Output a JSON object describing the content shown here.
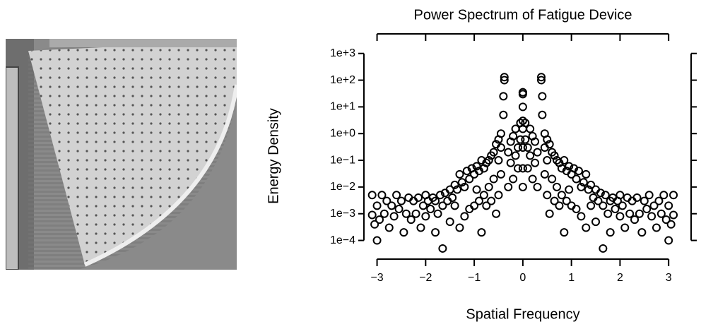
{
  "chart_data": {
    "type": "scatter",
    "title": "Power Spectrum of Fatigue Device",
    "x_label": "Spatial Frequency",
    "y_label": "Energy Density",
    "log_y": true,
    "color": "#000000",
    "xlim": [
      -3.27,
      3.23
    ],
    "ylim": [
      2e-05,
      1600
    ],
    "xticks": [
      {
        "value": -3,
        "label": "−3"
      },
      {
        "value": -2,
        "label": "−2"
      },
      {
        "value": -1,
        "label": "−1"
      },
      0,
      1,
      2,
      3
    ],
    "yticks": [
      {
        "value": 1000,
        "label": "1e+3"
      },
      {
        "value": 100,
        "label": "1e+2"
      },
      {
        "value": 10,
        "label": "1e+1"
      },
      {
        "value": 1,
        "label": "1e+0"
      },
      {
        "value": 0.1,
        "label": "1e−1"
      },
      {
        "value": 0.01,
        "label": "1e−2"
      },
      {
        "value": 0.001,
        "label": "1e−3"
      },
      {
        "value": 0.0001,
        "label": "1e−4"
      }
    ],
    "x": [
      -0.05,
      -0.05,
      -0.1,
      -0.1,
      -0.15,
      -0.15,
      -0.2,
      -0.2,
      -0.25,
      -0.25,
      -0.3,
      -0.3,
      -0.38,
      -0.38,
      -0.4,
      -0.4,
      -0.45,
      -0.45,
      -0.45,
      -0.5,
      -0.5,
      -0.5,
      -0.55,
      -0.55,
      -0.6,
      -0.6,
      -0.65,
      -0.65,
      -0.7,
      -0.7,
      -0.75,
      -0.75,
      -0.8,
      -0.8,
      -0.85,
      -0.85,
      -0.9,
      -0.9,
      -0.95,
      -0.95,
      -1.0,
      -1.0,
      -1.05,
      -1.1,
      -1.1,
      -1.15,
      -1.2,
      -1.2,
      -1.25,
      -1.3,
      -1.3,
      -1.35,
      -1.4,
      -1.4,
      -1.45,
      -1.5,
      -1.5,
      -1.55,
      -1.6,
      -1.65,
      -1.65,
      -1.7,
      -1.75,
      -1.8,
      -1.8,
      -1.85,
      -1.9,
      -1.95,
      -2.0,
      -2.0,
      -2.05,
      -2.1,
      -2.15,
      -2.2,
      -2.25,
      -2.3,
      -2.35,
      -2.4,
      -2.45,
      -2.5,
      -2.55,
      -2.6,
      -2.65,
      -2.7,
      -2.75,
      -2.8,
      -2.85,
      -2.9,
      -2.95,
      -3.0,
      -3.0,
      -3.05,
      -3.1,
      -3.1,
      0,
      0,
      0,
      0,
      0,
      0,
      0,
      0,
      0,
      0.05,
      0.05,
      0.1,
      0.1,
      0.15,
      0.15,
      0.2,
      0.2,
      0.25,
      0.25,
      0.3,
      0.3,
      0.38,
      0.38,
      0.4,
      0.4,
      0.45,
      0.45,
      0.45,
      0.5,
      0.5,
      0.5,
      0.55,
      0.55,
      0.6,
      0.6,
      0.65,
      0.65,
      0.7,
      0.7,
      0.75,
      0.75,
      0.8,
      0.8,
      0.85,
      0.85,
      0.9,
      0.9,
      0.95,
      0.95,
      1.0,
      1.0,
      1.05,
      1.1,
      1.1,
      1.15,
      1.2,
      1.2,
      1.25,
      1.3,
      1.3,
      1.35,
      1.4,
      1.4,
      1.45,
      1.5,
      1.5,
      1.55,
      1.6,
      1.65,
      1.65,
      1.7,
      1.75,
      1.8,
      1.8,
      1.85,
      1.9,
      1.95,
      2.0,
      2.0,
      2.05,
      2.1,
      2.15,
      2.2,
      2.25,
      2.3,
      2.35,
      2.4,
      2.45,
      2.5,
      2.55,
      2.6,
      2.65,
      2.7,
      2.75,
      2.8,
      2.85,
      2.9,
      2.95,
      3.0,
      3.0,
      3.05,
      3.1,
      3.1
    ],
    "values": [
      2.5,
      0.6,
      0.3,
      0.05,
      1.5,
      0.15,
      0.8,
      0.02,
      0.5,
      0.08,
      0.2,
      0.01,
      130,
      100,
      25,
      5,
      1,
      0.3,
      0.03,
      0.6,
      0.1,
      0.005,
      0.4,
      0.001,
      0.2,
      0.02,
      0.15,
      0.003,
      0.1,
      0.01,
      0.08,
      0.002,
      0.05,
      0.005,
      0.1,
      0.0002,
      0.04,
      0.003,
      0.06,
      0.008,
      0.03,
      0.002,
      0.05,
      0.02,
      0.0015,
      0.04,
      0.01,
      0.0008,
      0.015,
      0.03,
      0.0003,
      0.008,
      0.012,
      0.002,
      0.004,
      0.008,
      0.0005,
      0.003,
      0.006,
      5e-05,
      0.002,
      0.005,
      0.001,
      0.003,
      0.0002,
      0.004,
      0.0015,
      0.003,
      0.0008,
      0.005,
      0.002,
      0.0003,
      0.004,
      0.001,
      0.003,
      0.0006,
      0.004,
      0.001,
      0.0002,
      0.003,
      0.0015,
      0.005,
      0.0008,
      0.002,
      0.0003,
      0.003,
      0.001,
      0.005,
      0.0006,
      0.0001,
      0.002,
      0.0004,
      0.005,
      0.0009,
      35,
      35,
      30,
      10,
      3,
      1.5,
      0.3,
      0.05,
      0.01,
      2.5,
      0.6,
      0.3,
      0.05,
      1.5,
      0.15,
      0.8,
      0.02,
      0.5,
      0.08,
      0.2,
      0.01,
      130,
      100,
      25,
      5,
      1,
      0.3,
      0.03,
      0.6,
      0.1,
      0.005,
      0.4,
      0.001,
      0.2,
      0.02,
      0.15,
      0.003,
      0.1,
      0.01,
      0.08,
      0.002,
      0.05,
      0.005,
      0.1,
      0.0002,
      0.04,
      0.003,
      0.06,
      0.008,
      0.03,
      0.002,
      0.05,
      0.02,
      0.0015,
      0.04,
      0.01,
      0.0008,
      0.015,
      0.03,
      0.0003,
      0.008,
      0.012,
      0.002,
      0.004,
      0.008,
      0.0005,
      0.003,
      0.006,
      5e-05,
      0.002,
      0.005,
      0.001,
      0.003,
      0.0002,
      0.004,
      0.0015,
      0.003,
      0.0008,
      0.005,
      0.002,
      0.0003,
      0.004,
      0.001,
      0.003,
      0.0006,
      0.004,
      0.001,
      0.0002,
      0.003,
      0.0015,
      0.005,
      0.0008,
      0.002,
      0.0003,
      0.003,
      0.001,
      0.005,
      0.0006,
      0.0001,
      0.002,
      0.0004,
      0.005,
      0.0009
    ]
  }
}
